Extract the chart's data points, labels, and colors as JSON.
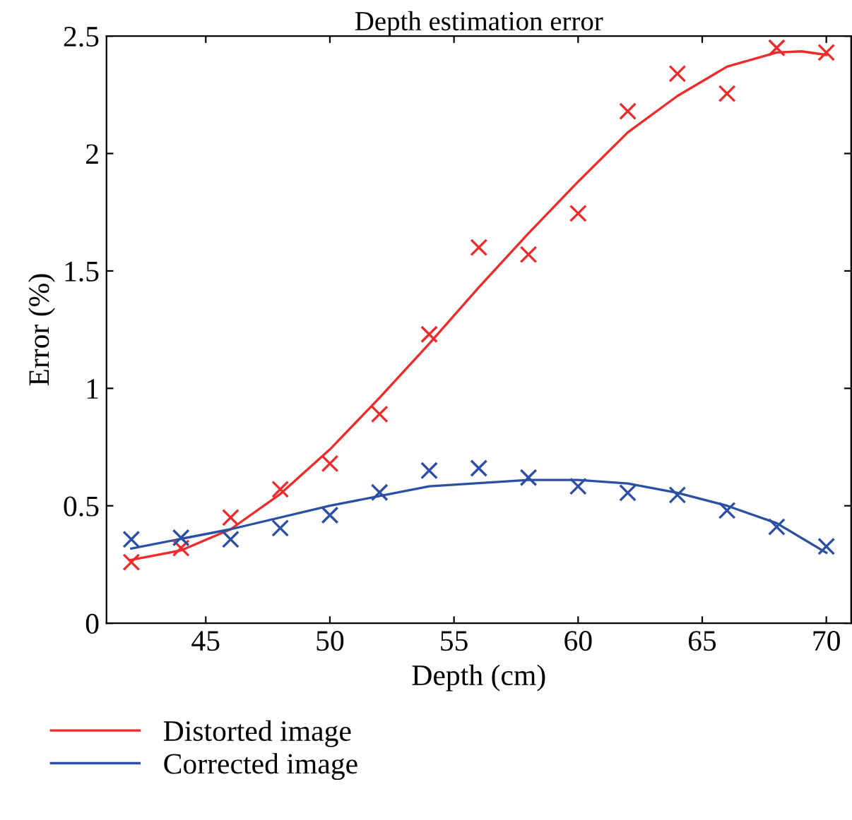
{
  "chart_data": {
    "type": "line",
    "title": "Depth estimation error",
    "xlabel": "Depth (cm)",
    "ylabel": "Error (%)",
    "xlim": [
      41,
      71
    ],
    "xticks": [
      45,
      50,
      55,
      60,
      65,
      70
    ],
    "ylim": [
      0,
      2.5
    ],
    "yticks": [
      0,
      0.5,
      1,
      1.5,
      2,
      2.5
    ],
    "grid": false,
    "legend": "bottom",
    "series": [
      {
        "type": "scatter",
        "marker": "cross",
        "color": "#ee2a2a",
        "x": [
          42,
          44,
          46,
          48,
          50,
          52,
          54,
          56,
          58,
          60,
          62,
          64,
          66,
          68,
          70
        ],
        "values": [
          0.26,
          0.32,
          0.45,
          0.57,
          0.68,
          0.89,
          1.23,
          1.6,
          1.57,
          1.745,
          2.18,
          2.34,
          2.255,
          2.45,
          2.43
        ]
      },
      {
        "type": "scatter",
        "marker": "cross",
        "color": "#2b4fa3",
        "x": [
          42,
          44,
          46,
          48,
          50,
          52,
          54,
          56,
          58,
          60,
          62,
          64,
          66,
          68,
          70
        ],
        "values": [
          0.357,
          0.364,
          0.357,
          0.405,
          0.46,
          0.557,
          0.65,
          0.66,
          0.62,
          0.583,
          0.555,
          0.546,
          0.48,
          0.41,
          0.327
        ]
      },
      {
        "name": "Distorted image",
        "color": "#ee2a2a",
        "marker": "none",
        "line_style": "solid",
        "x": [
          42,
          44,
          46,
          48,
          50,
          52,
          54,
          56,
          58,
          60,
          62,
          64,
          66,
          68,
          69,
          70
        ],
        "values": [
          0.27,
          0.31,
          0.4,
          0.55,
          0.74,
          0.96,
          1.19,
          1.43,
          1.66,
          1.88,
          2.09,
          2.245,
          2.37,
          2.43,
          2.435,
          2.42
        ]
      },
      {
        "name": "Corrected image",
        "color": "#2b4fa3",
        "marker": "none",
        "line_style": "solid",
        "x": [
          42,
          46,
          50,
          54,
          58,
          60,
          62,
          64,
          66,
          68,
          70
        ],
        "values": [
          0.318,
          0.4,
          0.5,
          0.583,
          0.61,
          0.61,
          0.595,
          0.555,
          0.5,
          0.426,
          0.3
        ]
      }
    ]
  }
}
